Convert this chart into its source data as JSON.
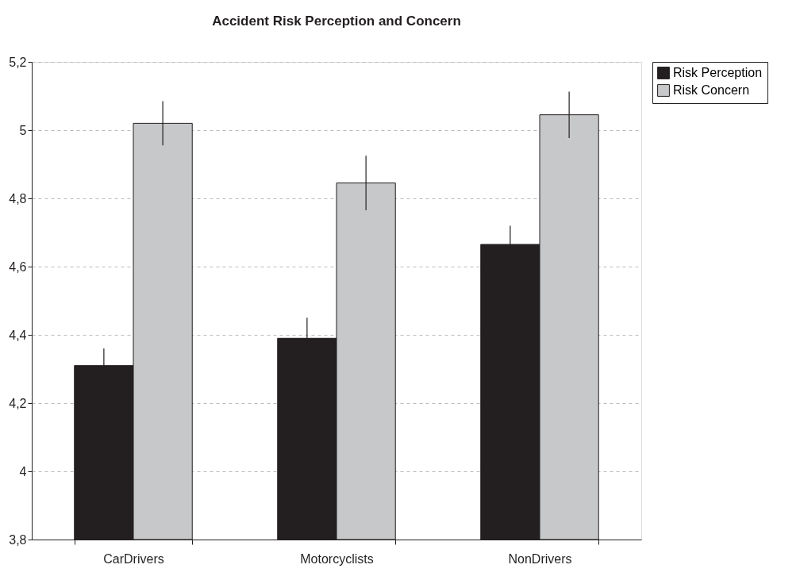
{
  "chart_data": {
    "type": "bar",
    "title": "Accident Risk Perception and Concern",
    "categories": [
      "CarDrivers",
      "Motorcyclists",
      "NonDrivers"
    ],
    "series": [
      {
        "name": "Risk Perception",
        "color": "#231f20",
        "values": [
          4.31,
          4.39,
          4.665
        ],
        "errors": [
          0.05,
          0.06,
          0.055
        ]
      },
      {
        "name": "Risk Concern",
        "color": "#c7c8ca",
        "values": [
          5.02,
          4.845,
          5.045
        ],
        "errors": [
          0.065,
          0.08,
          0.068
        ]
      }
    ],
    "ylim": [
      3.8,
      5.2
    ],
    "yticks": [
      {
        "value": 3.8,
        "label": "3,8"
      },
      {
        "value": 4,
        "label": "4"
      },
      {
        "value": 4.2,
        "label": "4,2"
      },
      {
        "value": 4.4,
        "label": "4,4"
      },
      {
        "value": 4.6,
        "label": "4,6"
      },
      {
        "value": 4.8,
        "label": "4,8"
      },
      {
        "value": 5,
        "label": "5"
      },
      {
        "value": 5.2,
        "label": "5,2"
      }
    ],
    "grid": "y",
    "legend": "right"
  }
}
